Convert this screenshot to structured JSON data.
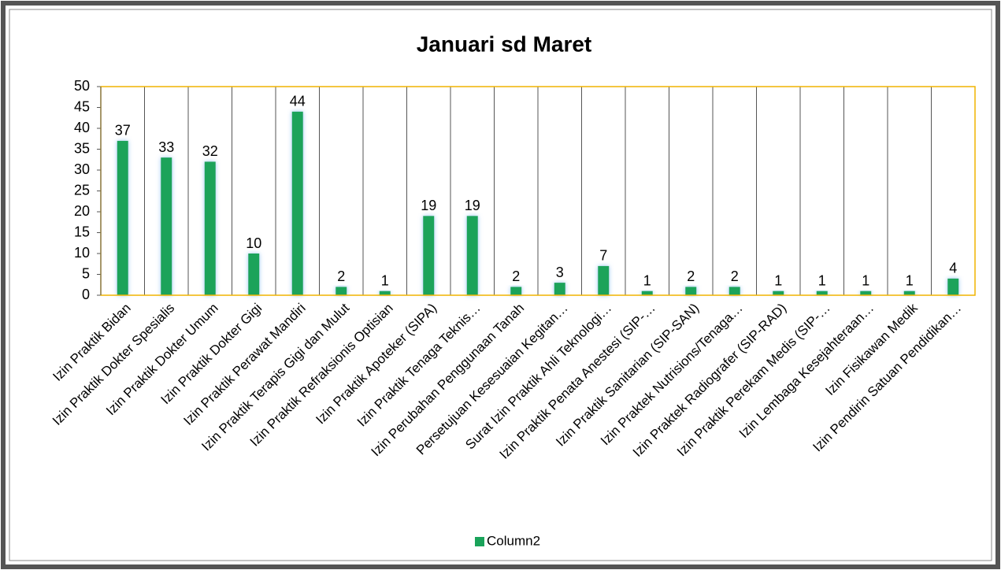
{
  "chart_data": {
    "type": "bar",
    "title": "Januari sd Maret",
    "categories": [
      "Izin Praktik Bidan",
      "Izin Praktik Dokter Spesialis",
      "Izin Praktik Dokter Umum",
      "Izin Praktik Dokter Gigi",
      "Izin Praktik Perawat Mandiri",
      "Izin Praktik Terapis Gigi dan Mulut",
      "Izin Praktik Refraksionis Optisian",
      "Izin Praktik Apoteker (SIPA)",
      "Izin Praktik Tenaga Teknis…",
      "Izin Perubahan Penggunaan Tanah",
      "Persetujuan Kesesuaian Kegitan…",
      "Surat Izin Praktik Ahli Teknologi…",
      "Izin Praktik Penata Anestesi (SIP-…",
      "Izin Praktik Sanitarian (SIP-SAN)",
      "Izin Praktek Nutrisions/Tenaga…",
      "Izin Praktek Radiografer (SIP-RAD)",
      "Izin Praktik Perekam Medis (SIP-…",
      "Izin Lembaga Kesejahteraan…",
      "Izin Fisikawan Medik",
      "Izin Pendirin Satuan Pendidikan…"
    ],
    "series": [
      {
        "name": "Column2",
        "color": "#1aa35a",
        "values": [
          37,
          33,
          32,
          10,
          44,
          2,
          1,
          19,
          19,
          2,
          3,
          7,
          1,
          2,
          2,
          1,
          1,
          1,
          1,
          4
        ]
      }
    ],
    "ylim": [
      0,
      50
    ],
    "yticks": [
      0,
      5,
      10,
      15,
      20,
      25,
      30,
      35,
      40,
      45,
      50
    ],
    "grid": "vertical",
    "legend": "bottom"
  }
}
